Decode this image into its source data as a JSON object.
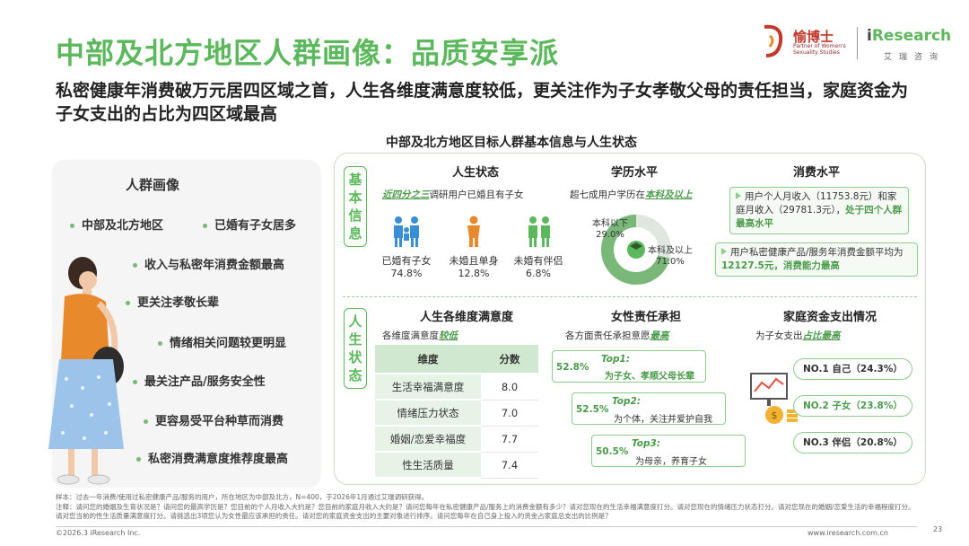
{
  "title": "中部及北方地区人群画像：品质安享派",
  "subtitle": "私密健康年消费破万元居四区域之首，人生各维度满意度较低，更关注作为子女孝敬父母的责任担当，家庭资金为子女支出的占比为四区域最高",
  "logo_yuboshi": {
    "name": "愉博士",
    "slogan": "Partner of Women's Sexuality Studies"
  },
  "logo_iresearch": {
    "name_i": "i",
    "name_rest": "Research",
    "sub": "艾瑞咨询"
  },
  "chart_title": "中部及北方地区目标人群基本信息与人生状态",
  "persona": {
    "title": "人群画像",
    "tags": [
      "中部及北方地区",
      "已婚有子女居多",
      "收入与私密年消费金额最高",
      "更关注孝敬长辈",
      "情绪相关问题较更明显",
      "最关注产品/服务安全性",
      "更容易受平台种草而消费",
      "私密消费满意度推荐度最高"
    ]
  },
  "basic_info": {
    "label": "基本信息",
    "life_status": {
      "heading": "人生状态",
      "note_emph": "近四分之三",
      "note_rest": "调研用户已婚且有子女",
      "groups": [
        {
          "label": "已婚有子女",
          "value": "74.8%"
        },
        {
          "label": "未婚且单身",
          "value": "12.8%"
        },
        {
          "label": "未婚有伴侣",
          "value": "6.8%"
        }
      ]
    },
    "education": {
      "heading": "学历水平",
      "note_prefix": "超七成用户学历在",
      "note_emph": "本科及以上",
      "below_label": "本科以下",
      "below_value": "29.0%",
      "above_label": "本科及以上",
      "above_value": "71.0%"
    },
    "consumption": {
      "heading": "消费水平",
      "box1_a": "用户个人月收入（11753.8元）和家庭月收入（29781.3元），",
      "box1_hl": "处于四个人群最高水平",
      "box2_a": "用户私密健康产品/服务年消费金额平均为",
      "box2_hl": "12127.5元，消费能力最高"
    }
  },
  "life_state": {
    "label": "人生状态",
    "satisfaction": {
      "heading": "人生各维度满意度",
      "note_prefix": "各维度满意度",
      "note_emph": "较低",
      "col1": "维度",
      "col2": "分数",
      "rows": [
        {
          "dim": "生活幸福满意度",
          "score": "8.0"
        },
        {
          "dim": "情绪压力状态",
          "score": "7.0"
        },
        {
          "dim": "婚姻/恋爱幸福度",
          "score": "7.7"
        },
        {
          "dim": "性生活质量",
          "score": "7.4"
        }
      ]
    },
    "responsibility": {
      "heading": "女性责任承担",
      "note_prefix": "各方面责任承担意愿",
      "note_emph": "最高",
      "items": [
        {
          "pct": "52.8%",
          "top": "Top1:",
          "text": "为子女、孝顺父母长辈"
        },
        {
          "pct": "52.5%",
          "top": "Top2:",
          "text": "为个体，关注并爱护自我"
        },
        {
          "pct": "50.5%",
          "top": "Top3:",
          "text": "为母亲，养育子女"
        }
      ]
    },
    "family_fund": {
      "heading": "家庭资金支出情况",
      "note_prefix": "为子女支出",
      "note_emph": "占比最高",
      "ranks": [
        {
          "text": "NO.1  自己（24.3%）"
        },
        {
          "text": "NO.2  子女（23.8%）"
        },
        {
          "text": "NO.3  伴侣（20.8%）"
        }
      ]
    }
  },
  "footnote": {
    "line1": "样本：过去一年消费/使用过私密健康产品/服务的用户，所在地区为中部及北方，N=400，于2026年1月通过艾瑞调研获得。",
    "line2": "注释：请问您的婚姻及生育状况是？请问您的最高学历是？您目前的个人月收入大约是？您目前的家庭月收入大约是？请问您每年在私密健康产品/服务上的消费金额有多少？请对您现在的生活幸福满意度打分。请对您现在的情绪压力状态打分。请对您现在的婚姻/恋爱生活的幸福程度打分。请对您当前的性生活质量满意度打分。请挑选出3项您认为女性最应该承担的责任。请对您的家庭资金支出的主要对象进行排序。请问您每年在自己身上投入的资金占家庭总支出的比例是？"
  },
  "copyright": "©2026.3 iResearch Inc.",
  "website": "www.iresearch.com.cn",
  "page_number": "23",
  "colors": {
    "accent": "#5cb85c",
    "light": "#cfe8cf",
    "orange": "#e8892c",
    "blue": "#3a8fd4"
  }
}
